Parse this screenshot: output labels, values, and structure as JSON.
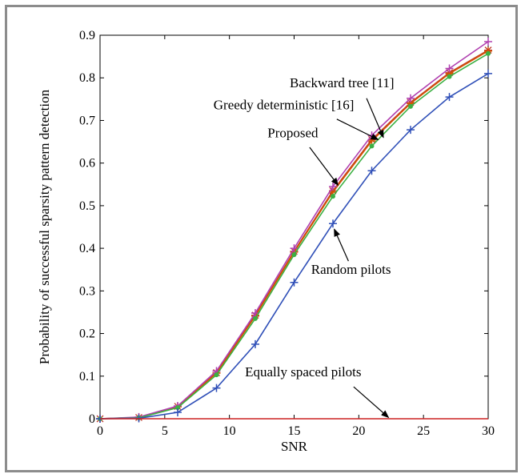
{
  "chart_data": {
    "type": "line",
    "xlabel": "SNR",
    "ylabel": "Probability of successful sparsity pattern detection",
    "xlim": [
      0,
      30
    ],
    "ylim": [
      0,
      0.9
    ],
    "xticks": [
      "0",
      "5",
      "10",
      "15",
      "20",
      "25",
      "30"
    ],
    "yticks": [
      "0",
      "0.1",
      "0.2",
      "0.3",
      "0.4",
      "0.5",
      "0.6",
      "0.7",
      "0.8",
      "0.9"
    ],
    "grid": false,
    "legend": "none (inline arrow annotations)",
    "x": [
      0,
      3,
      6,
      9,
      12,
      15,
      18,
      21,
      24,
      27,
      30
    ],
    "series": [
      {
        "name": "Backward tree [11]",
        "color": "#c0392b",
        "marker": "star",
        "values": [
          0,
          0.003,
          0.029,
          0.108,
          0.243,
          0.393,
          0.535,
          0.655,
          0.742,
          0.812,
          0.865
        ]
      },
      {
        "name": "Greedy deterministic [16]",
        "color": "#d35400",
        "marker": "plus",
        "values": [
          0,
          0.003,
          0.028,
          0.107,
          0.241,
          0.391,
          0.532,
          0.652,
          0.74,
          0.81,
          0.863
        ]
      },
      {
        "name": "Proposed",
        "color": "#b040b0",
        "marker": "plus",
        "values": [
          0,
          0.004,
          0.03,
          0.112,
          0.248,
          0.4,
          0.545,
          0.665,
          0.752,
          0.822,
          0.885
        ]
      },
      {
        "name": "",
        "color": "#3cb043",
        "marker": "dot",
        "values": [
          0,
          0.002,
          0.026,
          0.103,
          0.235,
          0.385,
          0.522,
          0.64,
          0.733,
          0.803,
          0.857
        ]
      },
      {
        "name": "Random pilots",
        "color": "#3050b8",
        "marker": "plus",
        "values": [
          0,
          0.001,
          0.015,
          0.072,
          0.175,
          0.32,
          0.458,
          0.582,
          0.678,
          0.755,
          0.81
        ]
      },
      {
        "name": "Equally spaced pilots",
        "color": "#cc2020",
        "marker": "none",
        "values": [
          0,
          0,
          0,
          0,
          0,
          0,
          0,
          0,
          0,
          0,
          0
        ]
      }
    ],
    "annotations": [
      {
        "text": "Backward tree [11]",
        "at": [
          18.7,
          0.778
        ],
        "points_to": [
          21.9,
          0.66
        ]
      },
      {
        "text": "Greedy deterministic [16]",
        "at": [
          14.2,
          0.726
        ],
        "points_to": [
          21.5,
          0.655
        ]
      },
      {
        "text": "Proposed",
        "at": [
          14.9,
          0.66
        ],
        "points_to": [
          18.4,
          0.548
        ]
      },
      {
        "text": "Random pilots",
        "at": [
          19.4,
          0.34
        ],
        "points_to": [
          18.1,
          0.445
        ]
      },
      {
        "text": "Equally spaced pilots",
        "at": [
          15.7,
          0.1
        ],
        "points_to": [
          22.3,
          0.003
        ]
      }
    ]
  }
}
